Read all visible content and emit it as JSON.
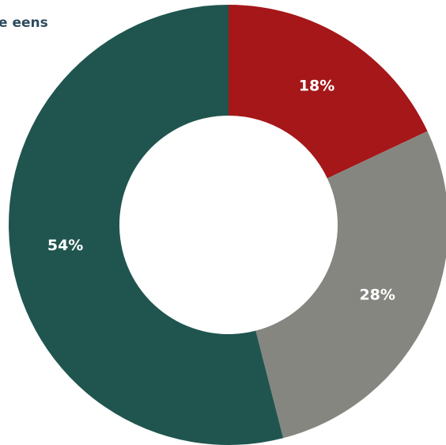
{
  "chart_data": {
    "type": "pie",
    "donut": true,
    "legend_text": "e eens",
    "legend_color": "#2d4a5e",
    "slices": [
      {
        "value": 18,
        "label": "18%",
        "color": "#a51719"
      },
      {
        "value": 28,
        "label": "28%",
        "color": "#868681"
      },
      {
        "value": 54,
        "label": "54%",
        "color": "#20554f"
      }
    ]
  }
}
